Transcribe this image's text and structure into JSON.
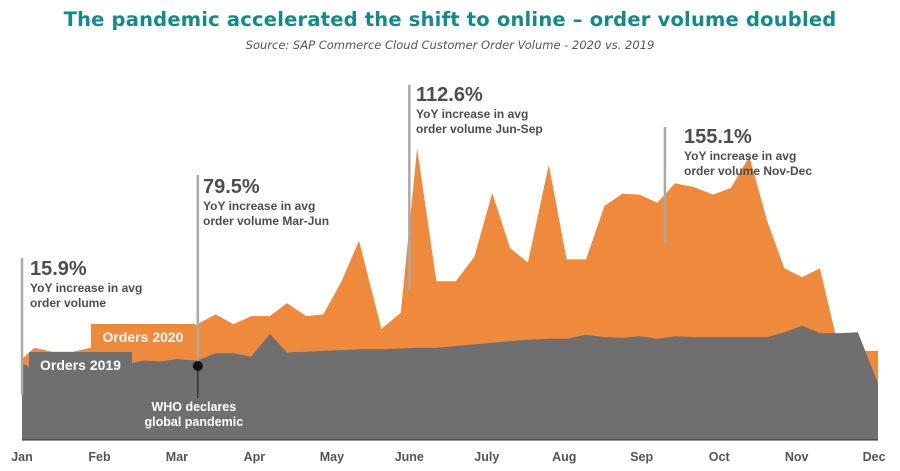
{
  "title": "The pandemic accelerated the shift to online – order volume doubled",
  "subtitle": "Source: SAP Commerce Cloud Customer Order Volume - 2020 vs. 2019",
  "chart_data": {
    "type": "area",
    "x_unit": "month",
    "xlim": [
      0,
      11.05
    ],
    "months": [
      "Jan",
      "Feb",
      "Mar",
      "Apr",
      "May",
      "June",
      "July",
      "Aug",
      "Sep",
      "Oct",
      "Nov",
      "Dec"
    ],
    "colors": {
      "orders_2020": "#ef8a3c",
      "orders_2019": "#6f6f6f",
      "annotation_text": "#4d4d4d",
      "title": "#118a8c"
    },
    "series": [
      {
        "name": "Orders 2020",
        "x": [
          0,
          0.16,
          0.39,
          0.66,
          0.89,
          1.12,
          1.35,
          1.57,
          1.8,
          2.0,
          2.26,
          2.5,
          2.73,
          2.96,
          3.2,
          3.42,
          3.67,
          3.89,
          4.12,
          4.35,
          4.64,
          4.89,
          5.1,
          5.35,
          5.6,
          5.84,
          6.07,
          6.3,
          6.53,
          6.8,
          7.03,
          7.28,
          7.52,
          7.75,
          7.97,
          8.2,
          8.43,
          8.68,
          8.92,
          9.15,
          9.39,
          9.62,
          9.84,
          10.07,
          10.3,
          10.55,
          10.79,
          11.05
        ],
        "values": [
          10,
          11.4,
          10.9,
          10.9,
          11.4,
          11.4,
          11.9,
          11.7,
          12.3,
          12.9,
          14.3,
          15.5,
          14.3,
          15.3,
          15.3,
          16.9,
          15.3,
          15.5,
          19.5,
          24.6,
          13.7,
          15.7,
          36.0,
          19.6,
          19.6,
          22.6,
          30.5,
          23.7,
          21.9,
          34.0,
          22.3,
          22.3,
          28.9,
          30.4,
          30.3,
          29.3,
          31.7,
          31.2,
          30.3,
          31.1,
          35.0,
          27.0,
          21.2,
          20.1,
          21.2,
          11,
          11,
          11
        ]
      },
      {
        "name": "Orders 2019",
        "x": [
          0,
          0.16,
          0.39,
          0.66,
          0.89,
          1.12,
          1.35,
          1.57,
          1.8,
          2.0,
          2.26,
          2.5,
          2.73,
          2.96,
          3.2,
          3.42,
          3.67,
          3.89,
          4.12,
          4.35,
          4.64,
          4.89,
          5.1,
          5.35,
          5.6,
          5.84,
          6.07,
          6.3,
          6.53,
          6.8,
          7.03,
          7.28,
          7.52,
          7.75,
          7.97,
          8.2,
          8.43,
          8.68,
          8.92,
          9.15,
          9.39,
          9.62,
          9.84,
          10.07,
          10.3,
          10.55,
          10.79,
          11.05
        ],
        "values": [
          9.5,
          8.6,
          9.2,
          9.2,
          9.3,
          9.4,
          9.4,
          9.8,
          9.7,
          10.0,
          9.8,
          10.7,
          10.7,
          10.3,
          13.1,
          10.8,
          10.9,
          11.0,
          11.1,
          11.2,
          11.2,
          11.3,
          11.4,
          11.4,
          11.6,
          11.8,
          12.0,
          12.2,
          12.4,
          12.5,
          12.5,
          13.0,
          12.7,
          12.6,
          12.8,
          12.5,
          12.8,
          12.7,
          12.7,
          12.7,
          12.7,
          12.7,
          13.3,
          14.1,
          13.2,
          13.2,
          13.3,
          7.0
        ]
      }
    ],
    "legend": [
      {
        "label": "Orders 2020",
        "color": "#ef8a3c"
      },
      {
        "label": "Orders 2019",
        "color": "#6f6f6f"
      }
    ],
    "annotations": [
      {
        "id": "a1",
        "x": 0.0,
        "big": "15.9%",
        "lines": [
          "YoY increase in avg",
          "order volume"
        ]
      },
      {
        "id": "a2",
        "x": 2.27,
        "big": "79.5%",
        "lines": [
          "YoY increase in avg",
          "order volume Mar-Jun"
        ]
      },
      {
        "id": "a3",
        "x": 5.0,
        "big": "112.6%",
        "lines": [
          "YoY increase in avg",
          "order volume Jun-Sep"
        ]
      },
      {
        "id": "a4",
        "x": 8.3,
        "big": "155.1%",
        "lines": [
          "YoY increase in avg",
          "order volume Nov-Dec"
        ]
      }
    ],
    "event": {
      "x": 2.27,
      "lines": [
        "WHO declares",
        "global pandemic"
      ]
    }
  }
}
